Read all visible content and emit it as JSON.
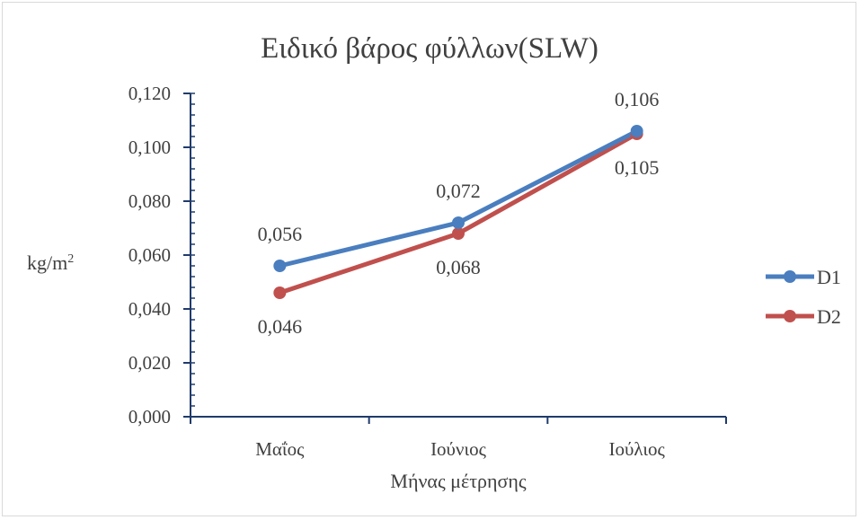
{
  "chart_data": {
    "type": "line",
    "title": "Ειδικό βάρος φύλλων(SLW)",
    "xlabel": "Μήνας μέτρησης",
    "ylabel": "kg/m",
    "ylabel_superscript": "2",
    "categories": [
      "Μαΐος",
      "Ιούνιος",
      "Ιούλιος"
    ],
    "ylim": [
      0,
      0.12
    ],
    "yticks": [
      "0,000",
      "0,020",
      "0,040",
      "0,060",
      "0,080",
      "0,100",
      "0,120"
    ],
    "grid": false,
    "legend_position": "right",
    "series": [
      {
        "name": "D1",
        "color": "#4a7ebf",
        "values": [
          0.056,
          0.072,
          0.106
        ],
        "labels": [
          "0,056",
          "0,072",
          "0,106"
        ]
      },
      {
        "name": "D2",
        "color": "#c0504d",
        "values": [
          0.046,
          0.068,
          0.105
        ],
        "labels": [
          "0,046",
          "0,068",
          "0,105"
        ]
      }
    ]
  }
}
